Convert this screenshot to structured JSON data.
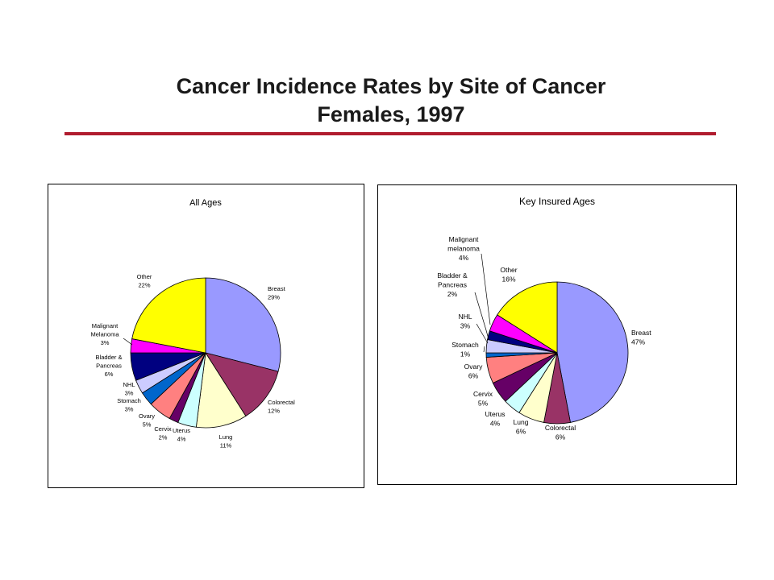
{
  "slide": {
    "title_line1": "Cancer Incidence Rates by Site of Cancer",
    "title_line2": "Females, 1997",
    "accent_color": "#b01c2e"
  },
  "chart_data": [
    {
      "type": "pie",
      "title": "All Ages",
      "start": "12 o'clock",
      "direction": "clockwise",
      "slices": [
        {
          "name": "Breast",
          "value": 29,
          "label": "Breast\n29%",
          "color": "#9999ff"
        },
        {
          "name": "Colorectal",
          "value": 12,
          "label": "Colorectal\n12%",
          "color": "#993366"
        },
        {
          "name": "Lung",
          "value": 11,
          "label": "Lung\n11%",
          "color": "#ffffcc"
        },
        {
          "name": "Uterus",
          "value": 4,
          "label": "Uterus\n4%",
          "color": "#ccffff"
        },
        {
          "name": "Cervix",
          "value": 2,
          "label": "Cervix\n2%",
          "color": "#660066"
        },
        {
          "name": "Ovary",
          "value": 5,
          "label": "Ovary\n5%",
          "color": "#ff8080"
        },
        {
          "name": "Stomach",
          "value": 3,
          "label": "Stomach\n3%",
          "color": "#0066cc"
        },
        {
          "name": "NHL",
          "value": 3,
          "label": "NHL\n3%",
          "color": "#ccccff"
        },
        {
          "name": "Bladder & Pancreas",
          "value": 6,
          "label": "Bladder &\nPancreas\n6%",
          "color": "#000080"
        },
        {
          "name": "Malignant Melanoma",
          "value": 3,
          "label": "Malignant\nMelanoma\n3%",
          "color": "#ff00ff"
        },
        {
          "name": "Other",
          "value": 22,
          "label": "Other\n22%",
          "color": "#ffff00"
        }
      ]
    },
    {
      "type": "pie",
      "title": "Key Insured Ages",
      "start": "12 o'clock",
      "direction": "clockwise",
      "slices": [
        {
          "name": "Breast",
          "value": 47,
          "label": "Breast\n47%",
          "color": "#9999ff"
        },
        {
          "name": "Colorectal",
          "value": 6,
          "label": "Colorectal\n6%",
          "color": "#993366"
        },
        {
          "name": "Lung",
          "value": 6,
          "label": "Lung\n6%",
          "color": "#ffffcc"
        },
        {
          "name": "Uterus",
          "value": 4,
          "label": "Uterus\n4%",
          "color": "#ccffff"
        },
        {
          "name": "Cervix",
          "value": 5,
          "label": "Cervix\n5%",
          "color": "#660066"
        },
        {
          "name": "Ovary",
          "value": 6,
          "label": "Ovary\n6%",
          "color": "#ff8080"
        },
        {
          "name": "Stomach",
          "value": 1,
          "label": "Stomach\n1%",
          "color": "#0066cc"
        },
        {
          "name": "NHL",
          "value": 3,
          "label": "NHL\n3%",
          "color": "#ccccff"
        },
        {
          "name": "Bladder & Pancreas",
          "value": 2,
          "label": "Bladder &\nPancreas\n2%",
          "color": "#000080"
        },
        {
          "name": "Malignant melanoma",
          "value": 4,
          "label": "Malignant\nmelanoma\n4%",
          "color": "#ff00ff"
        },
        {
          "name": "Other",
          "value": 16,
          "label": "Other\n16%",
          "color": "#ffff00"
        }
      ]
    }
  ]
}
